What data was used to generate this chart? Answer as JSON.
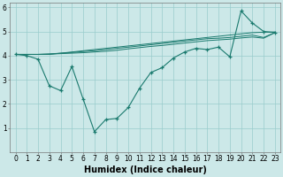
{
  "xlabel": "Humidex (Indice chaleur)",
  "bg_color": "#cce8e8",
  "grid_color": "#99cccc",
  "line_color": "#1a7a6e",
  "xlim": [
    -0.5,
    23.5
  ],
  "ylim": [
    0,
    6.2
  ],
  "xticks": [
    0,
    1,
    2,
    3,
    4,
    5,
    6,
    7,
    8,
    9,
    10,
    11,
    12,
    13,
    14,
    15,
    16,
    17,
    18,
    19,
    20,
    21,
    22,
    23
  ],
  "yticks": [
    1,
    2,
    3,
    4,
    5,
    6
  ],
  "series": {
    "line_main": [
      4.05,
      4.0,
      3.85,
      2.75,
      2.55,
      3.55,
      2.2,
      0.85,
      1.35,
      1.4,
      1.85,
      2.65,
      3.3,
      3.5,
      3.9,
      4.15,
      4.3,
      4.25,
      4.35,
      3.95,
      5.85,
      5.35,
      5.0,
      4.95
    ],
    "line_upper1": [
      4.05,
      4.05,
      4.05,
      4.05,
      4.1,
      4.15,
      4.2,
      4.25,
      4.3,
      4.35,
      4.4,
      4.45,
      4.5,
      4.55,
      4.6,
      4.65,
      4.7,
      4.75,
      4.8,
      4.85,
      4.9,
      4.95,
      4.97,
      4.98
    ],
    "line_upper2": [
      4.05,
      4.05,
      4.05,
      4.07,
      4.1,
      4.13,
      4.17,
      4.2,
      4.25,
      4.3,
      4.35,
      4.4,
      4.45,
      4.5,
      4.55,
      4.6,
      4.65,
      4.7,
      4.72,
      4.75,
      4.8,
      4.85,
      4.75,
      4.95
    ],
    "line_upper3": [
      4.05,
      4.05,
      4.05,
      4.06,
      4.08,
      4.1,
      4.12,
      4.15,
      4.18,
      4.22,
      4.28,
      4.33,
      4.38,
      4.42,
      4.47,
      4.52,
      4.57,
      4.62,
      4.65,
      4.68,
      4.73,
      4.77,
      4.72,
      4.95
    ]
  },
  "xlabel_fontsize": 7,
  "tick_fontsize": 5.5
}
